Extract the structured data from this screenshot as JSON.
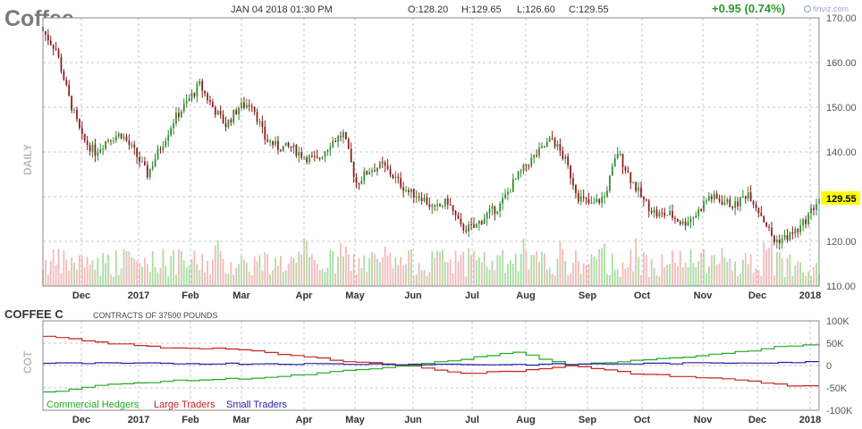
{
  "header": {
    "title": "Coffee",
    "datetime": "JAN 04 2018 01:30 PM",
    "open": "O:128.20",
    "high": "H:129.65",
    "low": "L:126.60",
    "close": "C:129.55",
    "change": "+0.95 (0.74%)",
    "brand": "finviz.com"
  },
  "price_panel": {
    "side_label": "DAILY",
    "current_price_label": "129.55",
    "y_ticks": [
      "170.00",
      "160.00",
      "150.00",
      "140.00",
      "130.00",
      "120.00",
      "110.00"
    ],
    "x_ticks": [
      "Dec",
      "2017",
      "Feb",
      "Mar",
      "Apr",
      "May",
      "Jun",
      "Jul",
      "Aug",
      "Sep",
      "Oct",
      "Nov",
      "Dec",
      "2018"
    ]
  },
  "cot_panel": {
    "title": "COFFEE C",
    "subtitle": "CONTRACTS OF 37500 POUNDS",
    "side_label": "COT",
    "y_ticks": [
      "100K",
      "50K",
      "0",
      "-50K",
      "-100K"
    ],
    "legend": [
      {
        "label": "Commercial Hedgers",
        "color": "#22aa22"
      },
      {
        "label": "Large Traders",
        "color": "#cc2222"
      },
      {
        "label": "Small Traders",
        "color": "#2222aa"
      }
    ]
  },
  "colors": {
    "up_candle": "#2e8b2e",
    "down_candle": "#8b1a1a",
    "volume_up": "#a8dca0",
    "volume_down": "#f4b8b8",
    "change_positive": "#2a9a2a",
    "price_label_bg": "#ffff00"
  },
  "chart_data": [
    {
      "type": "candlestick",
      "title": "Coffee",
      "ylabel": "DAILY",
      "ylim": [
        110,
        170
      ],
      "x_range": [
        "2016-11-14",
        "2018-01-04"
      ],
      "grid": true,
      "close_path": [
        [
          "2016-11-14",
          167
        ],
        [
          "2016-11-21",
          163
        ],
        [
          "2016-11-28",
          152
        ],
        [
          "2016-12-05",
          143
        ],
        [
          "2016-12-12",
          140
        ],
        [
          "2016-12-19",
          143
        ],
        [
          "2016-12-26",
          144
        ],
        [
          "2017-01-02",
          140
        ],
        [
          "2017-01-09",
          135
        ],
        [
          "2017-01-16",
          141
        ],
        [
          "2017-01-23",
          147
        ],
        [
          "2017-01-30",
          151
        ],
        [
          "2017-02-06",
          155
        ],
        [
          "2017-02-13",
          150
        ],
        [
          "2017-02-20",
          146
        ],
        [
          "2017-02-27",
          150
        ],
        [
          "2017-03-06",
          151
        ],
        [
          "2017-03-13",
          143
        ],
        [
          "2017-03-20",
          141
        ],
        [
          "2017-03-27",
          141
        ],
        [
          "2017-04-03",
          139
        ],
        [
          "2017-04-10",
          138
        ],
        [
          "2017-04-17",
          142
        ],
        [
          "2017-04-24",
          144
        ],
        [
          "2017-05-01",
          133
        ],
        [
          "2017-05-08",
          136
        ],
        [
          "2017-05-15",
          137
        ],
        [
          "2017-05-22",
          134
        ],
        [
          "2017-05-29",
          131
        ],
        [
          "2017-06-05",
          130
        ],
        [
          "2017-06-12",
          127
        ],
        [
          "2017-06-19",
          129
        ],
        [
          "2017-06-26",
          123
        ],
        [
          "2017-07-03",
          123
        ],
        [
          "2017-07-10",
          126
        ],
        [
          "2017-07-17",
          128
        ],
        [
          "2017-07-24",
          133
        ],
        [
          "2017-07-31",
          137
        ],
        [
          "2017-08-07",
          140
        ],
        [
          "2017-08-14",
          143
        ],
        [
          "2017-08-21",
          138
        ],
        [
          "2017-08-28",
          130
        ],
        [
          "2017-09-04",
          128
        ],
        [
          "2017-09-11",
          130
        ],
        [
          "2017-09-18",
          140
        ],
        [
          "2017-09-25",
          134
        ],
        [
          "2017-10-02",
          129
        ],
        [
          "2017-10-09",
          126
        ],
        [
          "2017-10-16",
          126
        ],
        [
          "2017-10-23",
          124
        ],
        [
          "2017-10-30",
          126
        ],
        [
          "2017-11-06",
          130
        ],
        [
          "2017-11-13",
          129
        ],
        [
          "2017-11-20",
          128
        ],
        [
          "2017-11-27",
          131
        ],
        [
          "2017-12-04",
          126
        ],
        [
          "2017-12-11",
          120
        ],
        [
          "2017-12-18",
          121
        ],
        [
          "2017-12-25",
          123
        ],
        [
          "2018-01-04",
          129.55
        ]
      ],
      "volume_pattern": "daily volume bars, green on up days and pink on down days"
    },
    {
      "type": "line",
      "title": "COFFEE C",
      "ylim": [
        -100000,
        100000
      ],
      "series": [
        {
          "name": "Commercial Hedgers",
          "color": "#22aa22",
          "values": [
            [
              "2016-11-14",
              -60000
            ],
            [
              "2016-12-12",
              -45000
            ],
            [
              "2017-01-16",
              -35000
            ],
            [
              "2017-02-20",
              -30000
            ],
            [
              "2017-03-20",
              -25000
            ],
            [
              "2017-04-24",
              -12000
            ],
            [
              "2017-05-29",
              0
            ],
            [
              "2017-06-26",
              15000
            ],
            [
              "2017-07-24",
              30000
            ],
            [
              "2017-08-21",
              0
            ],
            [
              "2017-09-25",
              12000
            ],
            [
              "2017-10-23",
              20000
            ],
            [
              "2017-11-20",
              30000
            ],
            [
              "2017-12-18",
              45000
            ],
            [
              "2018-01-04",
              45000
            ]
          ]
        },
        {
          "name": "Large Traders",
          "color": "#cc2222",
          "values": [
            [
              "2016-11-14",
              65000
            ],
            [
              "2016-12-12",
              52000
            ],
            [
              "2017-01-16",
              40000
            ],
            [
              "2017-02-20",
              38000
            ],
            [
              "2017-03-20",
              25000
            ],
            [
              "2017-04-24",
              10000
            ],
            [
              "2017-05-29",
              0
            ],
            [
              "2017-06-26",
              -18000
            ],
            [
              "2017-07-24",
              -12000
            ],
            [
              "2017-08-21",
              0
            ],
            [
              "2017-09-25",
              -18000
            ],
            [
              "2017-10-23",
              -25000
            ],
            [
              "2017-11-20",
              -32000
            ],
            [
              "2017-12-18",
              -45000
            ],
            [
              "2018-01-04",
              -45000
            ]
          ]
        },
        {
          "name": "Small Traders",
          "color": "#2222aa",
          "values": [
            [
              "2016-11-14",
              5000
            ],
            [
              "2017-03-20",
              4000
            ],
            [
              "2017-07-24",
              2000
            ],
            [
              "2017-10-23",
              5000
            ],
            [
              "2018-01-04",
              8000
            ]
          ]
        }
      ]
    }
  ]
}
